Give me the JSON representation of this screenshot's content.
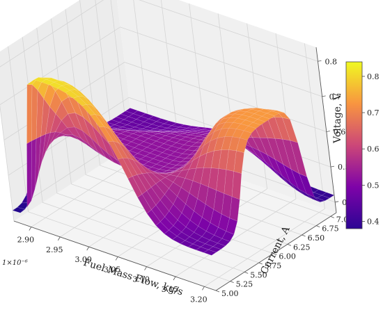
{
  "chart_data": {
    "type": "surface3d",
    "x": {
      "label": "Fuel Mass Flow, kg/s",
      "multiplier": "1×10⁻⁶",
      "ticks": [
        "2.90",
        "2.95",
        "3.00",
        "3.05",
        "3.10",
        "3.15",
        "3.20"
      ],
      "range": [
        2.87,
        3.22
      ]
    },
    "y": {
      "label": "Current, A",
      "ticks": [
        "5.00",
        "5.25",
        "5.50",
        "5.75",
        "6.00",
        "6.25",
        "6.50",
        "6.75",
        "7.00"
      ],
      "range": [
        5.0,
        7.1
      ]
    },
    "z": {
      "label": "Voltage, V",
      "ticks": [
        "0.4",
        "0.5",
        "0.6",
        "0.7",
        "0.8"
      ],
      "range": [
        0.37,
        0.84
      ]
    },
    "surface_key_points": [
      {
        "x": 2.87,
        "y": 5.0,
        "z": 0.4
      },
      {
        "x": 2.87,
        "y": 7.1,
        "z": 0.47
      },
      {
        "x": 3.22,
        "y": 5.0,
        "z": 0.47
      },
      {
        "x": 3.22,
        "y": 7.1,
        "z": 0.42
      },
      {
        "x": 2.95,
        "y": 5.0,
        "z": 0.81
      },
      {
        "x": 3.22,
        "y": 6.2,
        "z": 0.73
      },
      {
        "x": 3.0,
        "y": 6.0,
        "z": 0.52
      }
    ],
    "colorbar": {
      "colormap": "plasma",
      "ticks": [
        "0.4",
        "0.5",
        "0.6",
        "0.7",
        "0.8"
      ],
      "range": [
        0.38,
        0.84
      ]
    },
    "grid": true
  }
}
